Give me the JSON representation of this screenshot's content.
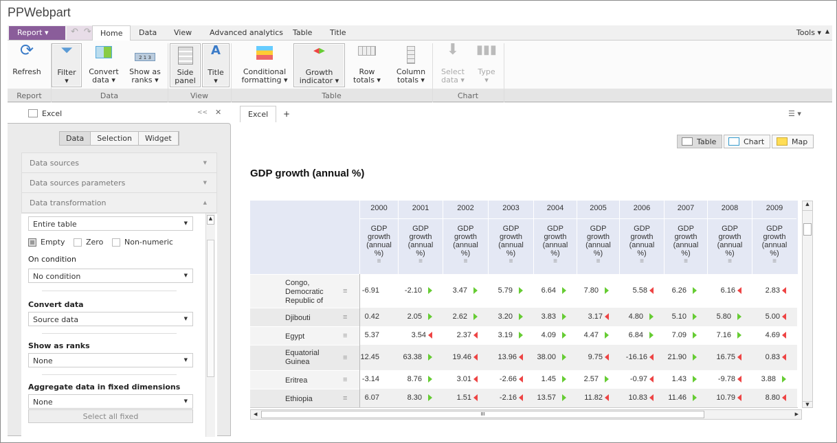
{
  "app": {
    "title": "PPWebpart"
  },
  "menu": {
    "report": "Report",
    "tabs": [
      "Home",
      "Data",
      "View",
      "Advanced analytics",
      "Table",
      "Title"
    ],
    "active_tab": "Home",
    "tools": "Tools"
  },
  "ribbon": {
    "buttons": [
      {
        "l1": "Refresh",
        "l2": "",
        "icon": "refresh-icon"
      },
      {
        "l1": "Filter",
        "l2": "▾",
        "icon": "filter-icon",
        "pressed": true
      },
      {
        "l1": "Convert",
        "l2": "data ▾",
        "icon": "convert-data-icon"
      },
      {
        "l1": "Show as",
        "l2": "ranks ▾",
        "icon": "ranks-icon"
      },
      {
        "l1": "Side",
        "l2": "panel",
        "icon": "side-panel-icon",
        "pressed": true
      },
      {
        "l1": "Title",
        "l2": "▾",
        "icon": "title-icon",
        "pressed": true
      },
      {
        "l1": "Conditional",
        "l2": "formatting ▾",
        "icon": "conditional-formatting-icon"
      },
      {
        "l1": "Growth",
        "l2": "indicator ▾",
        "icon": "growth-indicator-icon",
        "pressed": true
      },
      {
        "l1": "Row",
        "l2": "totals ▾",
        "icon": "row-totals-icon"
      },
      {
        "l1": "Column",
        "l2": "totals ▾",
        "icon": "column-totals-icon"
      },
      {
        "l1": "Select",
        "l2": "data ▾",
        "icon": "select-data-icon",
        "disabled": true
      },
      {
        "l1": "Type",
        "l2": "▾",
        "icon": "chart-type-icon",
        "disabled": true
      }
    ],
    "groups": [
      "Report",
      "Data",
      "View",
      "Table",
      "Chart"
    ]
  },
  "side_panel": {
    "title": "Excel",
    "collapse": "<<",
    "close": "✕",
    "tabs": [
      "Data",
      "Selection",
      "Widget"
    ],
    "active_tab": "Data",
    "sections": [
      "Data sources",
      "Data sources parameters",
      "Data transformation"
    ],
    "scope": "Entire table",
    "checkboxes": [
      {
        "label": "Empty",
        "checked": true
      },
      {
        "label": "Zero",
        "checked": false
      },
      {
        "label": "Non-numeric",
        "checked": false
      }
    ],
    "on_condition_label": "On condition",
    "on_condition": "No condition",
    "convert_label": "Convert data",
    "convert": "Source data",
    "ranks_label": "Show as ranks",
    "ranks": "None",
    "aggregate_label": "Aggregate data in fixed dimensions",
    "aggregate": "None",
    "select_all_fixed": "Select all fixed"
  },
  "main": {
    "doc_tab": "Excel",
    "add_tab": "+",
    "views": [
      "Table",
      "Chart",
      "Map"
    ],
    "active_view": "Table",
    "title": "GDP growth (annual %)",
    "colors": {
      "up": "#66cc33",
      "down": "#ee4444",
      "header_bg": "#e4e8f4"
    },
    "table": {
      "years": [
        "2000",
        "2001",
        "2002",
        "2003",
        "2004",
        "2005",
        "2006",
        "2007",
        "2008",
        "2009"
      ],
      "measure": "GDP growth (annual %)",
      "rows": [
        {
          "name": "Congo, Democratic Republic of",
          "values": [
            "-6.91",
            "-2.10",
            "3.47",
            "5.79",
            "6.64",
            "7.80",
            "5.58",
            "6.26",
            "6.16",
            "2.83"
          ],
          "ind": [
            "",
            "up",
            "up",
            "up",
            "up",
            "up",
            "down",
            "up",
            "down",
            "down"
          ]
        },
        {
          "name": "Djibouti",
          "values": [
            "0.42",
            "2.05",
            "2.62",
            "3.20",
            "3.83",
            "3.17",
            "4.80",
            "5.10",
            "5.80",
            "5.00"
          ],
          "ind": [
            "",
            "up",
            "up",
            "up",
            "up",
            "down",
            "up",
            "up",
            "up",
            "down"
          ]
        },
        {
          "name": "Egypt",
          "values": [
            "5.37",
            "3.54",
            "2.37",
            "3.19",
            "4.09",
            "4.47",
            "6.84",
            "7.09",
            "7.16",
            "4.69"
          ],
          "ind": [
            "",
            "down",
            "down",
            "up",
            "up",
            "up",
            "up",
            "up",
            "up",
            "down"
          ]
        },
        {
          "name": "Equatorial Guinea",
          "values": [
            "12.45",
            "63.38",
            "19.46",
            "13.96",
            "38.00",
            "9.75",
            "-16.16",
            "21.90",
            "16.75",
            "0.83"
          ],
          "ind": [
            "",
            "up",
            "down",
            "down",
            "up",
            "down",
            "down",
            "up",
            "down",
            "down"
          ]
        },
        {
          "name": "Eritrea",
          "values": [
            "-3.14",
            "8.76",
            "3.01",
            "-2.66",
            "1.45",
            "2.57",
            "-0.97",
            "1.43",
            "-9.78",
            "3.88"
          ],
          "ind": [
            "",
            "up",
            "down",
            "down",
            "up",
            "up",
            "down",
            "up",
            "down",
            "up"
          ]
        },
        {
          "name": "Ethiopia",
          "values": [
            "6.07",
            "8.30",
            "1.51",
            "-2.16",
            "13.57",
            "11.82",
            "10.83",
            "11.46",
            "10.79",
            "8.80"
          ],
          "ind": [
            "",
            "up",
            "down",
            "down",
            "up",
            "down",
            "down",
            "up",
            "down",
            "down"
          ]
        }
      ]
    }
  }
}
